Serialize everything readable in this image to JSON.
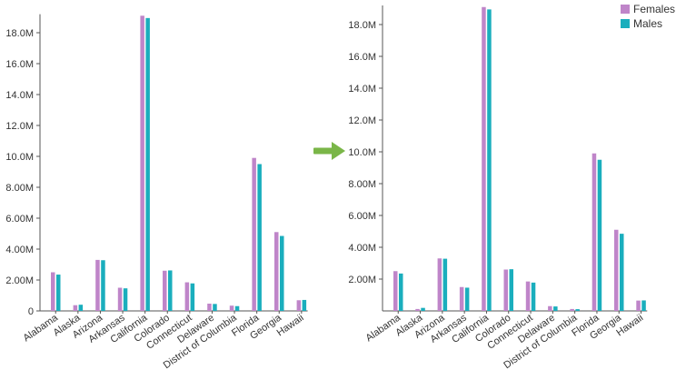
{
  "chart_data": [
    {
      "type": "bar",
      "categories": [
        "Alabama",
        "Alaska",
        "Arizona",
        "Arkansas",
        "California",
        "Colorado",
        "Connecticut",
        "Delaware",
        "District of Columbia",
        "Florida",
        "Georgia",
        "Hawaii"
      ],
      "series": [
        {
          "name": "Females",
          "values": [
            2500000,
            370000,
            3300000,
            1500000,
            19100000,
            2600000,
            1850000,
            470000,
            340000,
            9900000,
            5100000,
            690000
          ],
          "color": "#bf85c9"
        },
        {
          "name": "Males",
          "values": [
            2350000,
            400000,
            3280000,
            1460000,
            18950000,
            2620000,
            1780000,
            450000,
            310000,
            9500000,
            4850000,
            710000
          ],
          "color": "#1aaebd"
        }
      ],
      "yticks": [
        "0",
        "2.00M",
        "4.00M",
        "6.00M",
        "8.00M",
        "10.0M",
        "12.0M",
        "14.0M",
        "16.0M",
        "18.0M"
      ],
      "ylim": [
        0,
        19200000
      ],
      "legend": "none"
    },
    {
      "type": "bar",
      "categories": [
        "Alabama",
        "Alaska",
        "Arizona",
        "Arkansas",
        "California",
        "Colorado",
        "Connecticut",
        "Delaware",
        "District of Columbia",
        "Florida",
        "Georgia",
        "Hawaii"
      ],
      "series": [
        {
          "name": "Females",
          "values": [
            2500000,
            120000,
            3300000,
            1500000,
            19100000,
            2600000,
            1850000,
            300000,
            120000,
            9900000,
            5100000,
            650000
          ],
          "color": "#bf85c9"
        },
        {
          "name": "Males",
          "values": [
            2350000,
            190000,
            3280000,
            1460000,
            18950000,
            2620000,
            1780000,
            280000,
            110000,
            9500000,
            4850000,
            660000
          ],
          "color": "#1aaebd"
        }
      ],
      "yticks": [
        "2.00M",
        "4.00M",
        "6.00M",
        "8.00M",
        "10.0M",
        "12.0M",
        "14.0M",
        "16.0M",
        "18.0M"
      ],
      "ylim": [
        0,
        19200000
      ],
      "legend": "top-right"
    }
  ],
  "legend": {
    "items": [
      {
        "label": "Females",
        "color": "#bf85c9"
      },
      {
        "label": "Males",
        "color": "#1aaebd"
      }
    ]
  },
  "arrow": {
    "color": "#7ab648"
  },
  "icons": {
    "transition": "right-arrow-icon"
  }
}
